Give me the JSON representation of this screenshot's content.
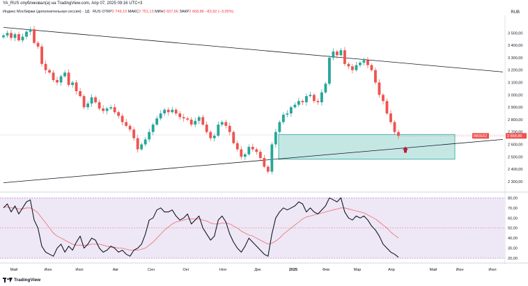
{
  "header": {
    "published": "YA_RUS опубликовал(а) на TradingView.com, Апр 07, 2025 09:16 UTC+3",
    "symbol": "Индекс Мосбиржи (дополнительная сессия) · 1Д · RUS",
    "open_label": "ОТКР",
    "open_value": "2 749,10",
    "high_label": "МАКС",
    "high_value": "2 751,13",
    "low_label": "МИН",
    "low_value": "2 657,66",
    "close_label": "ЗАКР",
    "close_value": "2 668,86 −83,92 (−3,05%)",
    "currency": "RUB"
  },
  "footer": {
    "brand": "TradingView"
  },
  "colors": {
    "up": "#26a69a",
    "down": "#ef5350",
    "zone": "#b2dfdb",
    "zone_border": "#26a69a",
    "osc_bg": "#ede7f6",
    "osc_line": "#131722",
    "osc_ma": "#f06c6c",
    "arrow": "#b71c3c"
  },
  "chart_data": [
    {
      "type": "candlestick",
      "title": "Индекс Мосбиржи (дополнительная сессия) · 1Д",
      "ylabel": "RUB",
      "ylim": [
        2260,
        3620
      ],
      "y_ticks": [
        2300,
        2400,
        2500,
        2600,
        2700,
        2800,
        2900,
        3000,
        3100,
        3200,
        3300,
        3400,
        3500
      ],
      "y_tick_labels": [
        "2 300,00",
        "2 400,00",
        "2 500,00",
        "2 600,00",
        "2 700,00",
        "2 800,00",
        "2 900,00",
        "3 000,00",
        "3 100,00",
        "3 200,00",
        "3 300,00",
        "3 400,00",
        "3 500,00"
      ],
      "x_tick_labels": [
        "Май",
        "Июн",
        "Июл",
        "Авг",
        "Сен",
        "Окт",
        "Ноя",
        "Дек",
        "2025",
        "Фев",
        "Мар",
        "Апр",
        "Май",
        "Июн",
        "Июл"
      ],
      "close_path": [
        3480,
        3500,
        3460,
        3490,
        3440,
        3470,
        3510,
        3530,
        3420,
        3390,
        3250,
        3200,
        3180,
        3120,
        3100,
        3150,
        3180,
        3080,
        3100,
        3030,
        2990,
        2900,
        2930,
        2980,
        2940,
        2890,
        2870,
        2890,
        2900,
        2860,
        2830,
        2780,
        2750,
        2720,
        2650,
        2560,
        2600,
        2640,
        2700,
        2760,
        2810,
        2850,
        2880,
        2860,
        2880,
        2850,
        2820,
        2810,
        2800,
        2760,
        2790,
        2820,
        2760,
        2700,
        2650,
        2670,
        2760,
        2780,
        2750,
        2700,
        2610,
        2560,
        2500,
        2520,
        2580,
        2560,
        2540,
        2490,
        2420,
        2380,
        2600,
        2700,
        2780,
        2840,
        2850,
        2900,
        2920,
        2950,
        2940,
        2990,
        3000,
        2950,
        2940,
        3020,
        3090,
        3300,
        3350,
        3320,
        3360,
        3250,
        3230,
        3200,
        3240,
        3260,
        3280,
        3240,
        3200,
        3100,
        3000,
        2950,
        2850,
        2780,
        2700,
        2668.86
      ],
      "last_price_label": "2 668,86",
      "last_price_tag": "IMOEX2",
      "support_zone": {
        "from": 2480,
        "to": 2680
      },
      "trendlines": [
        {
          "from_price": 3545,
          "to_price": 3185,
          "label": "resistance"
        },
        {
          "from_price": 2290,
          "to_price": 2640,
          "label": "support"
        }
      ]
    },
    {
      "type": "line",
      "title": "Oscillator",
      "ylim": [
        18,
        83
      ],
      "y_ticks": [
        20,
        30,
        40,
        50,
        60,
        70,
        80
      ],
      "y_tick_labels": [
        "20,00",
        "30,00",
        "40,00",
        "50,00",
        "60,00",
        "70,00",
        "80,00"
      ],
      "levels": [
        20,
        50,
        80
      ],
      "series": [
        {
          "name": "oscillator",
          "values": [
            70,
            74,
            66,
            72,
            64,
            70,
            76,
            78,
            58,
            50,
            32,
            26,
            24,
            22,
            30,
            34,
            26,
            32,
            28,
            36,
            42,
            30,
            34,
            40,
            38,
            30,
            26,
            28,
            32,
            30,
            26,
            28,
            24,
            22,
            28,
            30,
            34,
            44,
            58,
            60,
            68,
            70,
            66,
            66,
            68,
            62,
            58,
            60,
            64,
            54,
            58,
            62,
            50,
            44,
            38,
            42,
            58,
            62,
            56,
            44,
            36,
            30,
            26,
            32,
            40,
            36,
            32,
            28,
            24,
            22,
            44,
            60,
            66,
            70,
            68,
            70,
            72,
            76,
            74,
            66,
            70,
            66,
            64,
            68,
            72,
            80,
            78,
            76,
            80,
            66,
            60,
            58,
            62,
            60,
            62,
            58,
            52,
            48,
            42,
            34,
            30,
            26,
            24,
            21
          ]
        },
        {
          "name": "signal",
          "values": [
            71,
            71,
            70,
            70,
            69,
            69,
            70,
            70,
            68,
            65,
            60,
            55,
            50,
            45,
            42,
            40,
            38,
            36,
            34,
            33,
            33,
            33,
            33,
            34,
            34,
            34,
            33,
            32,
            31,
            31,
            30,
            30,
            29,
            28,
            28,
            28,
            29,
            30,
            33,
            36,
            40,
            44,
            48,
            51,
            54,
            56,
            57,
            58,
            59,
            59,
            59,
            59,
            58,
            57,
            55,
            54,
            54,
            55,
            55,
            54,
            52,
            50,
            47,
            45,
            43,
            42,
            40,
            38,
            36,
            34,
            35,
            37,
            40,
            44,
            47,
            50,
            53,
            56,
            59,
            61,
            62,
            63,
            64,
            65,
            66,
            67,
            68,
            69,
            70,
            70,
            69,
            68,
            67,
            66,
            65,
            63,
            61,
            59,
            56,
            53,
            50,
            46,
            43,
            40
          ]
        }
      ]
    }
  ]
}
